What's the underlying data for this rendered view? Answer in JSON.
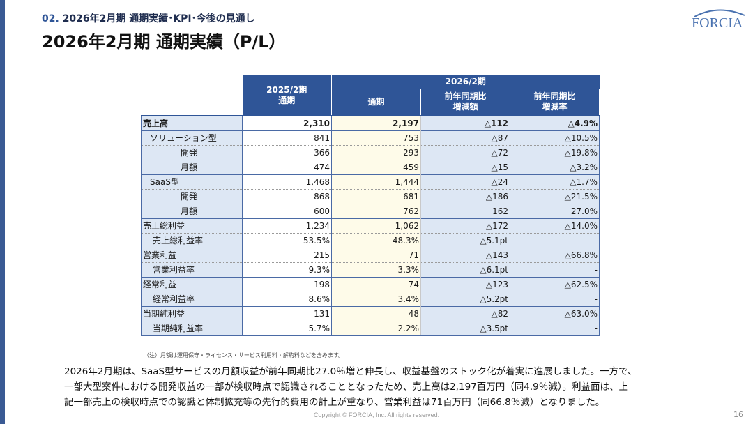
{
  "header": {
    "section_num": "02.",
    "section_title": "2026年2月期 通期実績･KPI･今後の見通し",
    "title": "2026年2月期 通期実績（P/L）"
  },
  "logo": {
    "text": "FORCIA",
    "brand_color": "#4a72b0"
  },
  "colors": {
    "accent": "#2f5597",
    "label_bg": "#dde7f4",
    "current_bg": "#fefbe9"
  },
  "table": {
    "col_2025": "2025/2期",
    "col_2025_sub": "通期",
    "group_2026": "2026/2期",
    "col_2026": "通期",
    "col_yoy_amt_1": "前年同期比",
    "col_yoy_amt_2": "増減額",
    "col_yoy_rate_1": "前年同期比",
    "col_yoy_rate_2": "増減率",
    "rows": [
      {
        "label": "売上高",
        "v2025": "2,310",
        "v2026": "2,197",
        "diff": "△112",
        "rate": "△4.9%"
      },
      {
        "label": "ソリューション型",
        "v2025": "841",
        "v2026": "753",
        "diff": "△87",
        "rate": "△10.5%"
      },
      {
        "label": "開発",
        "v2025": "366",
        "v2026": "293",
        "diff": "△72",
        "rate": "△19.8%"
      },
      {
        "label": "月額",
        "v2025": "474",
        "v2026": "459",
        "diff": "△15",
        "rate": "△3.2%"
      },
      {
        "label": "SaaS型",
        "v2025": "1,468",
        "v2026": "1,444",
        "diff": "△24",
        "rate": "△1.7%"
      },
      {
        "label": "開発",
        "v2025": "868",
        "v2026": "681",
        "diff": "△186",
        "rate": "△21.5%"
      },
      {
        "label": "月額",
        "v2025": "600",
        "v2026": "762",
        "diff": "162",
        "rate": "27.0%"
      },
      {
        "label": "売上総利益",
        "v2025": "1,234",
        "v2026": "1,062",
        "diff": "△172",
        "rate": "△14.0%"
      },
      {
        "label": "売上総利益率",
        "v2025": "53.5%",
        "v2026": "48.3%",
        "diff": "△5.1pt",
        "rate": "-"
      },
      {
        "label": "営業利益",
        "v2025": "215",
        "v2026": "71",
        "diff": "△143",
        "rate": "△66.8%"
      },
      {
        "label": "営業利益率",
        "v2025": "9.3%",
        "v2026": "3.3%",
        "diff": "△6.1pt",
        "rate": "-"
      },
      {
        "label": "経常利益",
        "v2025": "198",
        "v2026": "74",
        "diff": "△123",
        "rate": "△62.5%"
      },
      {
        "label": "経常利益率",
        "v2025": "8.6%",
        "v2026": "3.4%",
        "diff": "△5.2pt",
        "rate": "-"
      },
      {
        "label": "当期純利益",
        "v2025": "131",
        "v2026": "48",
        "diff": "△82",
        "rate": "△63.0%"
      },
      {
        "label": "当期純利益率",
        "v2025": "5.7%",
        "v2026": "2.2%",
        "diff": "△3.5pt",
        "rate": "-"
      }
    ]
  },
  "note": "（注）月額は運用保守・ライセンス・サービス利用料・解約料などを含みます。",
  "summary": {
    "line1": "2026年2月期は、SaaS型サービスの月額収益が前年同期比27.0％増と伸長し、収益基盤のストック化が着実に進展しました。一方で、",
    "line2": "一部大型案件における開発収益の一部が検収時点で認識されることとなったため、売上高は2,197百万円（同4.9％減）。利益面は、上",
    "line3": "記一部売上の検収時点での認識と体制拡充等の先行的費用の計上が重なり、営業利益は71百万円（同66.8％減）となりました。"
  },
  "footer": {
    "copyright": "Copyright © FORCIA, Inc. All rights reserved.",
    "page": "16"
  }
}
